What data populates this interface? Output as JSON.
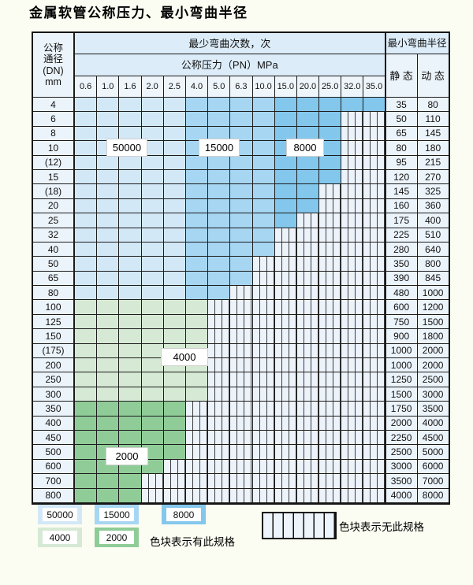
{
  "title": "金属软管公称压力、最小弯曲半径",
  "table": {
    "header": {
      "dn_lines": [
        "公称",
        "通径",
        "(DN)",
        "mm"
      ],
      "cycles_title": "最少弯曲次数，次",
      "pressure_title": "公称压力（PN）MPa",
      "radius_title": "最小弯曲半径",
      "static_label": "静 态",
      "dynamic_label": "动 态",
      "pressures": [
        "0.6",
        "1.0",
        "1.6",
        "2.0",
        "2.5",
        "4.0",
        "5.0",
        "6.3",
        "10.0",
        "15.0",
        "20.0",
        "25.0",
        "32.0",
        "35.0"
      ]
    },
    "column_bands": {
      "50000": [
        "0.6",
        "2.5"
      ],
      "15000": [
        "4.0",
        "10.0"
      ],
      "8000": [
        "15.0",
        "35.0"
      ]
    },
    "rows": [
      {
        "dn": "4",
        "band": "blue",
        "max_pn": "35.0",
        "static": "35",
        "dynamic": "80"
      },
      {
        "dn": "6",
        "band": "blue",
        "max_pn": "25.0",
        "static": "50",
        "dynamic": "110"
      },
      {
        "dn": "8",
        "band": "blue",
        "max_pn": "25.0",
        "static": "65",
        "dynamic": "145"
      },
      {
        "dn": "10",
        "band": "blue",
        "max_pn": "25.0",
        "static": "80",
        "dynamic": "180"
      },
      {
        "dn": "(12)",
        "band": "blue",
        "max_pn": "25.0",
        "static": "95",
        "dynamic": "215"
      },
      {
        "dn": "15",
        "band": "blue",
        "max_pn": "25.0",
        "static": "120",
        "dynamic": "270"
      },
      {
        "dn": "(18)",
        "band": "blue",
        "max_pn": "20.0",
        "static": "145",
        "dynamic": "325"
      },
      {
        "dn": "20",
        "band": "blue",
        "max_pn": "20.0",
        "static": "160",
        "dynamic": "360"
      },
      {
        "dn": "25",
        "band": "blue",
        "max_pn": "15.0",
        "static": "175",
        "dynamic": "400"
      },
      {
        "dn": "32",
        "band": "blue",
        "max_pn": "10.0",
        "static": "225",
        "dynamic": "510"
      },
      {
        "dn": "40",
        "band": "blue",
        "max_pn": "10.0",
        "static": "280",
        "dynamic": "640"
      },
      {
        "dn": "50",
        "band": "blue",
        "max_pn": "6.3",
        "static": "350",
        "dynamic": "800"
      },
      {
        "dn": "65",
        "band": "blue",
        "max_pn": "6.3",
        "static": "390",
        "dynamic": "845"
      },
      {
        "dn": "80",
        "band": "blue",
        "max_pn": "5.0",
        "static": "480",
        "dynamic": "1000"
      },
      {
        "dn": "100",
        "band": "green4000",
        "max_pn": "4.0",
        "static": "600",
        "dynamic": "1200"
      },
      {
        "dn": "125",
        "band": "green4000",
        "max_pn": "4.0",
        "static": "750",
        "dynamic": "1500"
      },
      {
        "dn": "150",
        "band": "green4000",
        "max_pn": "4.0",
        "static": "900",
        "dynamic": "1800"
      },
      {
        "dn": "(175)",
        "band": "green4000",
        "max_pn": "4.0",
        "static": "1000",
        "dynamic": "2000"
      },
      {
        "dn": "200",
        "band": "green4000",
        "max_pn": "4.0",
        "static": "1000",
        "dynamic": "2000"
      },
      {
        "dn": "250",
        "band": "green4000",
        "max_pn": "4.0",
        "static": "1250",
        "dynamic": "2500"
      },
      {
        "dn": "300",
        "band": "green4000",
        "max_pn": "4.0",
        "static": "1500",
        "dynamic": "3000"
      },
      {
        "dn": "350",
        "band": "green2000",
        "max_pn": "2.5",
        "static": "1750",
        "dynamic": "3500"
      },
      {
        "dn": "400",
        "band": "green2000",
        "max_pn": "2.5",
        "static": "2000",
        "dynamic": "4000"
      },
      {
        "dn": "450",
        "band": "green2000",
        "max_pn": "2.5",
        "static": "2250",
        "dynamic": "4500"
      },
      {
        "dn": "500",
        "band": "green2000",
        "max_pn": "2.5",
        "static": "2500",
        "dynamic": "5000"
      },
      {
        "dn": "600",
        "band": "green2000",
        "max_pn": "2.0",
        "static": "3000",
        "dynamic": "6000"
      },
      {
        "dn": "700",
        "band": "green2000",
        "max_pn": "1.6",
        "static": "3500",
        "dynamic": "7000"
      },
      {
        "dn": "800",
        "band": "green2000",
        "max_pn": "1.6",
        "static": "4000",
        "dynamic": "8000"
      }
    ],
    "overlay_labels": {
      "l50000": "50000",
      "l15000": "15000",
      "l8000": "8000",
      "l4000": "4000",
      "l2000": "2000"
    }
  },
  "colors": {
    "c50000": "#d3e8f7",
    "c15000": "#a7d6f2",
    "c8000": "#84c7ec",
    "c4000": "#d6e9d4",
    "c2000": "#90cc98"
  },
  "legend": {
    "items": [
      {
        "label": "50000",
        "color_key": "c50000"
      },
      {
        "label": "15000",
        "color_key": "c15000"
      },
      {
        "label": "8000",
        "color_key": "c8000"
      },
      {
        "label": "4000",
        "color_key": "c4000"
      },
      {
        "label": "2000",
        "color_key": "c2000"
      }
    ],
    "available_text": "色块表示有此规格",
    "unavailable_text": "色块表示无此规格"
  }
}
